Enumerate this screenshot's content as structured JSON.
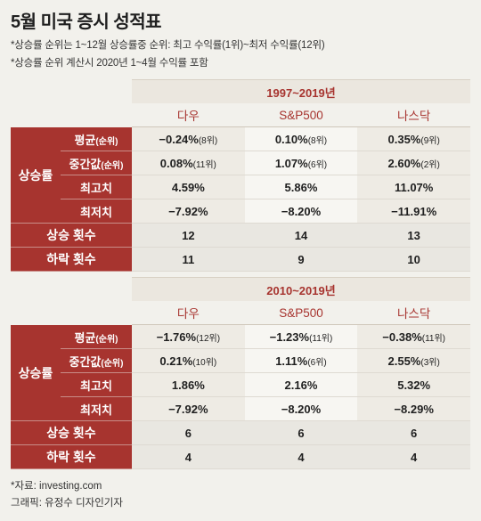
{
  "title": "5월 미국 증시 성적표",
  "notes": [
    "*상승률 순위는 1~12월 상승률중 순위: 최고 수익률(1위)~최저 수익률(12위)",
    "*상승률 순위 계산시 2020년 1~4월 수익률 포함"
  ],
  "columns": [
    "다우",
    "S&P500",
    "나스닥"
  ],
  "tables": [
    {
      "period": "1997~2019년",
      "category": "상승률",
      "rows": [
        {
          "label": "평균",
          "label_suffix": "(순위)",
          "cells": [
            [
              "−0.24%",
              "(8위)"
            ],
            [
              "0.10%",
              "(8위)"
            ],
            [
              "0.35%",
              "(9위)"
            ]
          ]
        },
        {
          "label": "중간값",
          "label_suffix": "(순위)",
          "cells": [
            [
              "0.08%",
              "(11위)"
            ],
            [
              "1.07%",
              "(6위)"
            ],
            [
              "2.60%",
              "(2위)"
            ]
          ]
        },
        {
          "label": "최고치",
          "label_suffix": "",
          "cells": [
            [
              "4.59%",
              ""
            ],
            [
              "5.86%",
              ""
            ],
            [
              "11.07%",
              ""
            ]
          ]
        },
        {
          "label": "최저치",
          "label_suffix": "",
          "cells": [
            [
              "−7.92%",
              ""
            ],
            [
              "−8.20%",
              ""
            ],
            [
              "−11.91%",
              ""
            ]
          ]
        }
      ],
      "counts": [
        {
          "label": "상승 횟수",
          "values": [
            "12",
            "14",
            "13"
          ]
        },
        {
          "label": "하락 횟수",
          "values": [
            "11",
            "9",
            "10"
          ]
        }
      ]
    },
    {
      "period": "2010~2019년",
      "category": "상승률",
      "rows": [
        {
          "label": "평균",
          "label_suffix": "(순위)",
          "cells": [
            [
              "−1.76%",
              "(12위)"
            ],
            [
              "−1.23%",
              "(11위)"
            ],
            [
              "−0.38%",
              "(11위)"
            ]
          ]
        },
        {
          "label": "중간값",
          "label_suffix": "(순위)",
          "cells": [
            [
              "0.21%",
              "(10위)"
            ],
            [
              "1.11%",
              "(6위)"
            ],
            [
              "2.55%",
              "(3위)"
            ]
          ]
        },
        {
          "label": "최고치",
          "label_suffix": "",
          "cells": [
            [
              "1.86%",
              ""
            ],
            [
              "2.16%",
              ""
            ],
            [
              "5.32%",
              ""
            ]
          ]
        },
        {
          "label": "최저치",
          "label_suffix": "",
          "cells": [
            [
              "−7.92%",
              ""
            ],
            [
              "−8.20%",
              ""
            ],
            [
              "−8.29%",
              ""
            ]
          ]
        }
      ],
      "counts": [
        {
          "label": "상승 횟수",
          "values": [
            "6",
            "6",
            "6"
          ]
        },
        {
          "label": "하락 횟수",
          "values": [
            "4",
            "4",
            "4"
          ]
        }
      ]
    }
  ],
  "footer": {
    "source": "*자료: investing.com",
    "credit": "그래픽: 유정수 디자인기자"
  }
}
